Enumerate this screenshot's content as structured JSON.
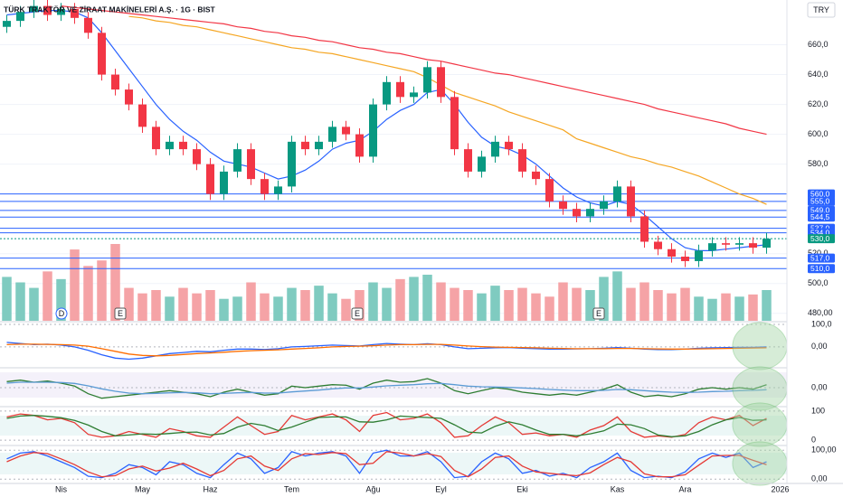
{
  "chart_data": {
    "type": "candlestick",
    "title": "TÜRK TRAKTÖR VE ZİRAAT MAKİNELERİ A.Ş. · 1G · BIST",
    "currency": "TRY",
    "categories": [
      null,
      null,
      null,
      null,
      "Nis",
      null,
      null,
      null,
      null,
      null,
      "May",
      null,
      null,
      null,
      null,
      "Haz",
      null,
      null,
      null,
      null,
      null,
      "Tem",
      null,
      null,
      null,
      null,
      null,
      "Ağu",
      null,
      null,
      null,
      null,
      "Eyl",
      null,
      null,
      null,
      null,
      null,
      "Eki",
      null,
      null,
      null,
      null,
      null,
      null,
      "Kas",
      null,
      null,
      null,
      null,
      "Ara",
      null,
      null,
      null,
      null,
      null,
      null,
      "2026"
    ],
    "open": [
      672,
      676,
      682,
      686,
      680,
      684,
      678,
      668,
      640,
      630,
      620,
      605,
      590,
      595,
      590,
      580,
      560,
      575,
      590,
      570,
      560,
      565,
      595,
      590,
      595,
      605,
      600,
      585,
      620,
      635,
      625,
      628,
      645,
      625,
      590,
      575,
      585,
      595,
      590,
      575,
      570,
      555,
      550,
      545,
      550,
      555,
      565,
      545,
      528,
      523,
      518,
      515,
      522,
      527,
      526,
      527,
      524,
      null
    ],
    "high": [
      680,
      686,
      690,
      690,
      688,
      688,
      682,
      672,
      644,
      634,
      624,
      609,
      599,
      599,
      594,
      584,
      579,
      594,
      594,
      574,
      569,
      599,
      599,
      599,
      609,
      609,
      604,
      624,
      639,
      639,
      632,
      649,
      649,
      629,
      594,
      589,
      599,
      599,
      594,
      579,
      574,
      559,
      554,
      554,
      559,
      569,
      569,
      549,
      532,
      527,
      522,
      526,
      531,
      531,
      531,
      531,
      534,
      null
    ],
    "low": [
      668,
      672,
      678,
      676,
      676,
      674,
      664,
      636,
      626,
      616,
      601,
      586,
      586,
      586,
      576,
      556,
      556,
      571,
      566,
      556,
      556,
      561,
      586,
      586,
      591,
      596,
      581,
      581,
      616,
      621,
      621,
      624,
      621,
      586,
      571,
      571,
      581,
      586,
      571,
      566,
      551,
      546,
      541,
      541,
      546,
      551,
      541,
      524,
      519,
      514,
      511,
      511,
      518,
      522,
      522,
      520,
      520,
      null
    ],
    "close": [
      676,
      682,
      686,
      680,
      684,
      678,
      668,
      640,
      630,
      620,
      605,
      590,
      595,
      590,
      580,
      560,
      575,
      590,
      570,
      560,
      565,
      595,
      590,
      595,
      605,
      600,
      585,
      620,
      635,
      625,
      628,
      645,
      625,
      590,
      575,
      585,
      595,
      590,
      575,
      570,
      555,
      550,
      545,
      550,
      555,
      565,
      545,
      528,
      523,
      518,
      515,
      522,
      527,
      526,
      527,
      524,
      530,
      null
    ],
    "up_color": "#089981",
    "down_color": "#f23645",
    "volume": [
      40,
      35,
      30,
      45,
      38,
      65,
      50,
      55,
      70,
      30,
      25,
      28,
      22,
      30,
      25,
      28,
      20,
      22,
      35,
      25,
      22,
      30,
      28,
      32,
      25,
      20,
      28,
      35,
      30,
      38,
      40,
      42,
      35,
      30,
      28,
      25,
      32,
      28,
      30,
      25,
      22,
      35,
      30,
      28,
      40,
      45,
      30,
      35,
      28,
      25,
      30,
      22,
      20,
      25,
      22,
      24,
      28,
      null
    ],
    "volume_up_color": "#7fcbc0",
    "volume_down_color": "#f5a3a6",
    "ylim": [
      475,
      690
    ],
    "yticks": [
      {
        "value": 480,
        "label": "480,00"
      },
      {
        "value": 500,
        "label": "500,0"
      },
      {
        "value": 520,
        "label": "520,0"
      },
      {
        "value": 580,
        "label": "580,0"
      },
      {
        "value": 600,
        "label": "600,0"
      },
      {
        "value": 620,
        "label": "620,0"
      },
      {
        "value": 640,
        "label": "640,0"
      },
      {
        "value": 660,
        "label": "660,0"
      }
    ],
    "overlays": [
      {
        "color": "#f23645",
        "values": [
          null,
          null,
          null,
          null,
          686,
          685,
          684,
          683,
          682,
          681,
          680,
          679,
          678,
          677,
          676,
          675,
          674,
          672,
          671,
          669,
          668,
          666,
          665,
          663,
          662,
          660,
          658,
          657,
          655,
          654,
          652,
          650,
          649,
          647,
          645,
          643,
          641,
          640,
          638,
          636,
          634,
          632,
          630,
          628,
          626,
          624,
          622,
          620,
          617,
          615,
          613,
          611,
          609,
          607,
          604,
          602,
          600,
          null
        ]
      },
      {
        "color": "#f5a623",
        "values": [
          null,
          null,
          null,
          null,
          null,
          null,
          null,
          null,
          null,
          679,
          678,
          676,
          675,
          673,
          672,
          670,
          668,
          666,
          664,
          662,
          660,
          658,
          657,
          655,
          654,
          652,
          650,
          648,
          646,
          644,
          642,
          638,
          633,
          628,
          625,
          622,
          619,
          615,
          612,
          609,
          606,
          603,
          597,
          594,
          591,
          588,
          585,
          583,
          580,
          578,
          575,
          572,
          568,
          564,
          560,
          557,
          553,
          null
        ]
      },
      {
        "color": "#2962ff",
        "values": [
          680,
          681,
          682,
          683,
          683,
          682,
          678,
          668,
          656,
          644,
          632,
          620,
          610,
          602,
          596,
          588,
          582,
          580,
          578,
          574,
          570,
          572,
          576,
          582,
          590,
          594,
          596,
          602,
          610,
          616,
          620,
          628,
          630,
          620,
          608,
          598,
          592,
          590,
          586,
          580,
          572,
          564,
          558,
          554,
          552,
          555,
          553,
          546,
          538,
          530,
          524,
          522,
          522,
          523,
          524,
          525,
          526,
          null
        ]
      }
    ],
    "levels": [
      {
        "value": 560,
        "label": "560,0",
        "color": "#2962ff"
      },
      {
        "value": 555,
        "label": "555,0",
        "color": "#2962ff"
      },
      {
        "value": 549,
        "label": "549,0",
        "color": "#2962ff"
      },
      {
        "value": 544.5,
        "label": "544,5",
        "color": "#2962ff"
      },
      {
        "value": 537,
        "label": "537,0",
        "color": "#2962ff"
      },
      {
        "value": 534,
        "label": "534,0",
        "color": "#2962ff"
      },
      {
        "value": 530,
        "label": "530,0",
        "color": "#089981"
      },
      {
        "value": 517,
        "label": "517,0",
        "color": "#2962ff"
      },
      {
        "value": 510,
        "label": "510,0",
        "color": "#2962ff"
      }
    ],
    "events": [
      "D",
      "E",
      "E",
      "E"
    ],
    "panes": [
      {
        "ylim": [
          -85,
          104
        ],
        "yticks": [
          {
            "value": 100,
            "label": "100,0"
          },
          {
            "value": 0,
            "label": "0,00"
          }
        ],
        "series": [
          {
            "color": "#2962ff",
            "values": [
              20,
              15,
              10,
              12,
              8,
              0,
              -15,
              -35,
              -50,
              -55,
              -50,
              -40,
              -30,
              -25,
              -20,
              -22,
              -15,
              -10,
              -10,
              -12,
              -8,
              0,
              2,
              5,
              8,
              6,
              4,
              10,
              15,
              12,
              10,
              14,
              10,
              0,
              -8,
              -6,
              -4,
              -3,
              -6,
              -8,
              -10,
              -10,
              -9,
              -8,
              -6,
              -3,
              -6,
              -10,
              -12,
              -12,
              -10,
              -6,
              -4,
              -3,
              -2,
              -2,
              0,
              null
            ]
          },
          {
            "color": "#ff6d00",
            "values": [
              10,
              12,
              12,
              11,
              10,
              8,
              3,
              -8,
              -20,
              -32,
              -38,
              -40,
              -38,
              -34,
              -30,
              -27,
              -24,
              -20,
              -17,
              -15,
              -13,
              -10,
              -7,
              -4,
              0,
              2,
              3,
              5,
              8,
              10,
              10,
              11,
              11,
              8,
              4,
              1,
              -1,
              -2,
              -3,
              -4,
              -6,
              -7,
              -8,
              -8,
              -8,
              -7,
              -7,
              -8,
              -9,
              -10,
              -10,
              -9,
              -8,
              -7,
              -6,
              -5,
              -4,
              null
            ]
          }
        ]
      },
      {
        "ylim": [
          -60,
          60
        ],
        "yticks": [
          {
            "value": 0,
            "label": "0,00"
          }
        ],
        "series": [
          {
            "color": "#2e7d32",
            "values": [
              20,
              25,
              18,
              22,
              15,
              5,
              -20,
              -35,
              -30,
              -25,
              -20,
              -15,
              -10,
              -15,
              -20,
              -30,
              -15,
              -5,
              -15,
              -25,
              -20,
              5,
              0,
              5,
              10,
              8,
              -5,
              15,
              25,
              18,
              20,
              30,
              15,
              -10,
              -20,
              -10,
              0,
              -5,
              -15,
              -20,
              -25,
              -20,
              -25,
              -15,
              -5,
              10,
              -15,
              -30,
              -25,
              -30,
              -20,
              -5,
              0,
              -5,
              0,
              -5,
              10,
              null
            ]
          },
          {
            "color": "#5b9bd5",
            "values": [
              15,
              18,
              18,
              18,
              17,
              14,
              6,
              -4,
              -12,
              -18,
              -20,
              -19,
              -17,
              -16,
              -17,
              -20,
              -19,
              -17,
              -16,
              -18,
              -18,
              -14,
              -11,
              -8,
              -4,
              -1,
              -1,
              2,
              6,
              8,
              10,
              13,
              14,
              10,
              5,
              3,
              2,
              1,
              -1,
              -3,
              -6,
              -8,
              -10,
              -10,
              -9,
              -6,
              -7,
              -10,
              -13,
              -15,
              -16,
              -15,
              -13,
              -12,
              -10,
              -9,
              -7,
              null
            ]
          }
        ]
      },
      {
        "ylim": [
          -15,
          109
        ],
        "yticks": [
          100,
          0
        ],
        "series": [
          {
            "color": "#e53935",
            "values": [
              80,
              90,
              85,
              70,
              75,
              60,
              20,
              10,
              15,
              30,
              20,
              10,
              40,
              30,
              15,
              10,
              45,
              80,
              50,
              20,
              30,
              85,
              70,
              80,
              90,
              70,
              30,
              85,
              95,
              70,
              75,
              90,
              60,
              10,
              15,
              50,
              80,
              60,
              20,
              25,
              15,
              20,
              10,
              35,
              50,
              80,
              30,
              10,
              15,
              10,
              20,
              60,
              80,
              70,
              85,
              50,
              75,
              null
            ]
          },
          {
            "color": "#2e7d32",
            "values": [
              75,
              83,
              85,
              82,
              77,
              68,
              52,
              30,
              15,
              18,
              22,
              20,
              23,
              27,
              28,
              18,
              23,
              45,
              58,
              50,
              33,
              45,
              62,
              78,
              80,
              80,
              63,
              62,
              70,
              83,
              80,
              78,
              75,
              53,
              28,
              25,
              48,
              63,
              53,
              35,
              20,
              20,
              15,
              22,
              32,
              55,
              53,
              40,
              18,
              12,
              15,
              30,
              53,
              70,
              78,
              68,
              70,
              null
            ]
          }
        ]
      },
      {
        "ylim": [
          -15,
          110
        ],
        "yticks": [
          {
            "value": 100,
            "label": "100,00"
          },
          {
            "value": 0,
            "label": "0,00"
          }
        ],
        "series": [
          {
            "color": "#2962ff",
            "values": [
              70,
              90,
              95,
              80,
              60,
              40,
              10,
              5,
              20,
              50,
              40,
              15,
              60,
              50,
              20,
              5,
              50,
              90,
              70,
              20,
              40,
              95,
              80,
              90,
              95,
              80,
              20,
              90,
              100,
              80,
              80,
              95,
              60,
              5,
              10,
              60,
              90,
              70,
              20,
              30,
              10,
              20,
              5,
              40,
              60,
              90,
              30,
              5,
              10,
              5,
              25,
              70,
              90,
              75,
              90,
              40,
              60,
              null
            ]
          },
          {
            "color": "#e53935",
            "values": [
              60,
              80,
              92,
              88,
              70,
              50,
              25,
              8,
              12,
              35,
              45,
              28,
              38,
              55,
              35,
              12,
              30,
              70,
              80,
              45,
              30,
              70,
              88,
              85,
              92,
              88,
              50,
              55,
              95,
              90,
              80,
              88,
              78,
              30,
              8,
              35,
              75,
              80,
              45,
              25,
              20,
              15,
              12,
              22,
              50,
              75,
              60,
              18,
              8,
              8,
              15,
              48,
              80,
              82,
              82,
              65,
              50,
              null
            ]
          }
        ]
      }
    ]
  }
}
